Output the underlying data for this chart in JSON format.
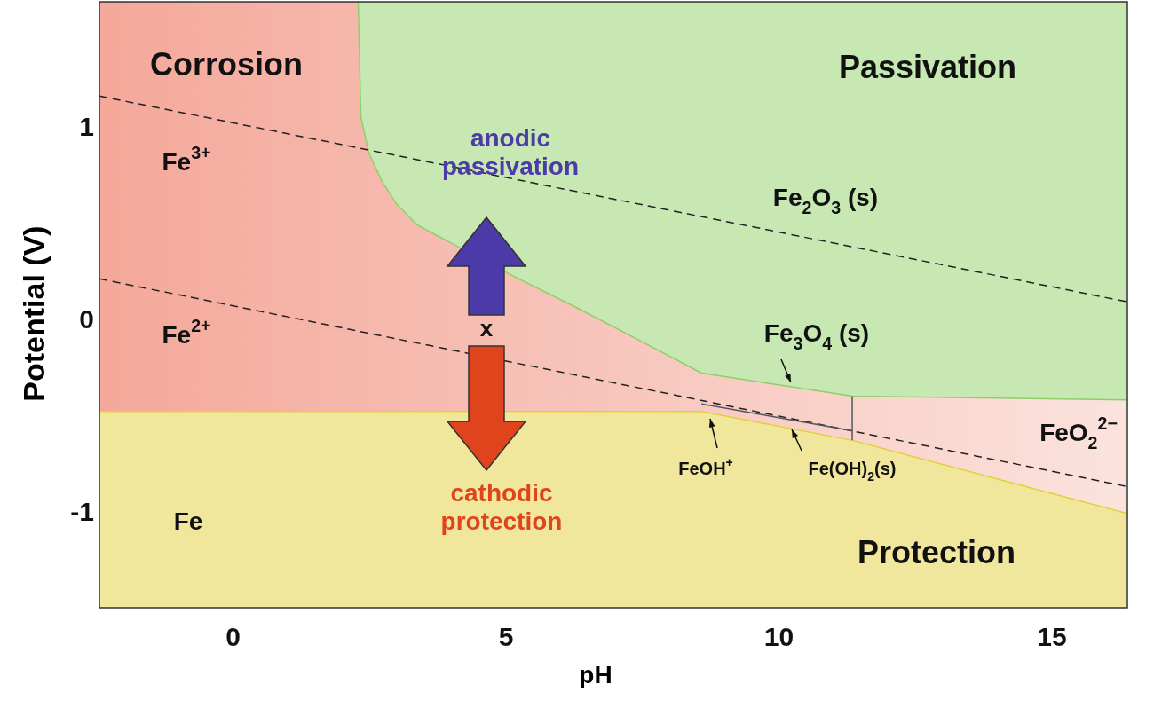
{
  "chart_data": {
    "type": "line",
    "xlabel": "pH",
    "ylabel": "Potential (V)",
    "xlim": [
      -2.44,
      16.39
    ],
    "ylim": [
      -1.5,
      1.65
    ],
    "xticks": [
      0,
      5,
      10,
      15
    ],
    "yticks": [
      -1,
      0,
      1
    ],
    "grid": false,
    "marker": "none",
    "series": [
      {
        "color": "#e3cf3a",
        "line_style": "solid",
        "x": [
          -2.44,
          8.59,
          11.35,
          16.39
        ],
        "values": [
          -0.48,
          -0.48,
          -0.63,
          -1.01
        ],
        "lower": [
          -1.5,
          -1.5,
          -1.5,
          -1.5
        ],
        "upper": [
          -0.48,
          -0.48,
          -0.63,
          -1.01
        ]
      },
      {
        "color": "#8fcf68",
        "line_style": "solid",
        "x": [
          2.3,
          2.35,
          2.5,
          2.73,
          3.0,
          3.38,
          5.17,
          6.3,
          7.45,
          8.59,
          11.35,
          16.39
        ],
        "values": [
          1.65,
          1.05,
          0.86,
          0.72,
          0.6,
          0.49,
          0.22,
          0.06,
          -0.11,
          -0.28,
          -0.4,
          -0.42
        ],
        "lower": [
          1.65,
          1.05,
          0.86,
          0.72,
          0.6,
          0.49,
          0.22,
          0.06,
          -0.11,
          -0.28,
          -0.4,
          -0.42
        ],
        "upper": [
          1.65,
          1.65,
          1.65,
          1.65,
          1.65,
          1.65,
          1.65,
          1.65,
          1.65,
          1.65,
          1.65,
          1.65
        ]
      },
      {
        "color": "#222222",
        "line_style": "dashed",
        "x": [
          -2.44,
          16.39
        ],
        "values": [
          1.16,
          0.09
        ]
      },
      {
        "color": "#222222",
        "line_style": "dashed",
        "x": [
          -2.44,
          16.39
        ],
        "values": [
          0.21,
          -0.87
        ]
      },
      {
        "color": "#555560",
        "line_style": "solid",
        "x": [
          11.35,
          11.35
        ],
        "values": [
          -0.4,
          -0.63
        ]
      },
      {
        "color": "#555560",
        "line_style": "solid",
        "x": [
          8.59,
          11.35
        ],
        "values": [
          -0.44,
          -0.58
        ]
      }
    ],
    "annotations": [
      "Corrosion",
      "Passivation",
      "Fe$^{3+}$",
      "Fe$^{2+}$",
      "Fe",
      "Protection",
      "Fe$_{2}$O$_{3}$ (s)",
      "Fe$_{3}$O$_{4}$ (s)",
      "FeO$_{2}$$^{2−}$",
      "FeOH$^{+}$",
      "Fe(OH)$_{2}$(s)",
      "anodic passivation",
      "cathodic protection",
      "x"
    ]
  }
}
